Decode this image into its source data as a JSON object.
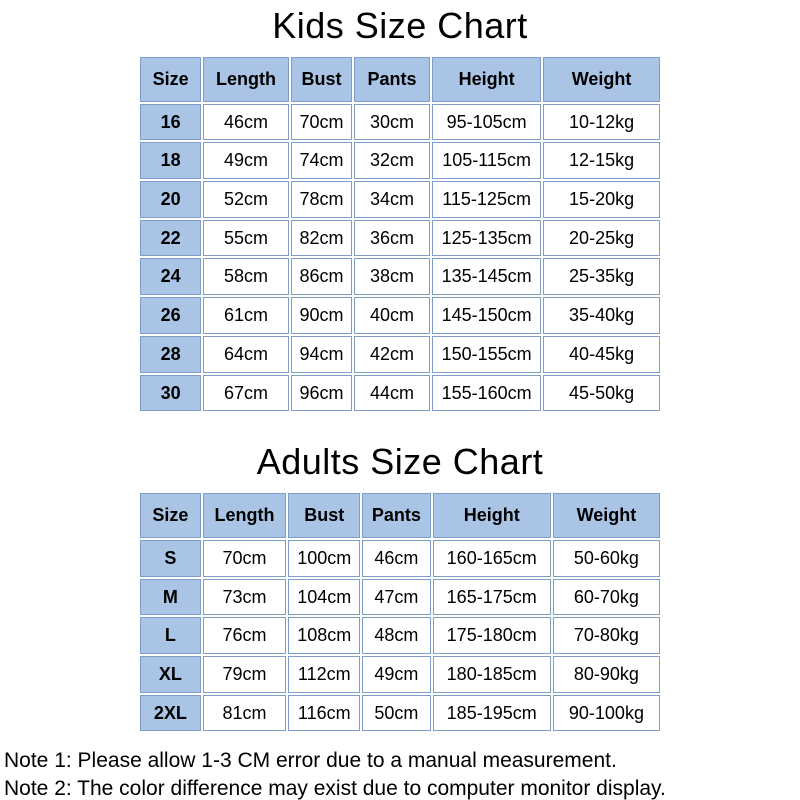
{
  "colors": {
    "table_fill": "#a9c4e5",
    "table_border": "#7e9ec7",
    "text": "#000000",
    "background": "#ffffff"
  },
  "chart_data": [
    {
      "type": "table",
      "title": "Kids Size Chart",
      "columns": [
        "Size",
        "Length",
        "Bust",
        "Pants",
        "Height",
        "Weight"
      ],
      "rows": [
        [
          "16",
          "46cm",
          "70cm",
          "30cm",
          "95-105cm",
          "10-12kg"
        ],
        [
          "18",
          "49cm",
          "74cm",
          "32cm",
          "105-115cm",
          "12-15kg"
        ],
        [
          "20",
          "52cm",
          "78cm",
          "34cm",
          "115-125cm",
          "15-20kg"
        ],
        [
          "22",
          "55cm",
          "82cm",
          "36cm",
          "125-135cm",
          "20-25kg"
        ],
        [
          "24",
          "58cm",
          "86cm",
          "38cm",
          "135-145cm",
          "25-35kg"
        ],
        [
          "26",
          "61cm",
          "90cm",
          "40cm",
          "145-150cm",
          "35-40kg"
        ],
        [
          "28",
          "64cm",
          "94cm",
          "42cm",
          "150-155cm",
          "40-45kg"
        ],
        [
          "30",
          "67cm",
          "96cm",
          "44cm",
          "155-160cm",
          "45-50kg"
        ]
      ]
    },
    {
      "type": "table",
      "title": "Adults Size Chart",
      "columns": [
        "Size",
        "Length",
        "Bust",
        "Pants",
        "Height",
        "Weight"
      ],
      "rows": [
        [
          "S",
          "70cm",
          "100cm",
          "46cm",
          "160-165cm",
          "50-60kg"
        ],
        [
          "M",
          "73cm",
          "104cm",
          "47cm",
          "165-175cm",
          "60-70kg"
        ],
        [
          "L",
          "76cm",
          "108cm",
          "48cm",
          "175-180cm",
          "70-80kg"
        ],
        [
          "XL",
          "79cm",
          "112cm",
          "49cm",
          "180-185cm",
          "80-90kg"
        ],
        [
          "2XL",
          "81cm",
          "116cm",
          "50cm",
          "185-195cm",
          "90-100kg"
        ]
      ]
    }
  ],
  "notes": [
    "Note 1: Please allow 1-3 CM error due to a manual measurement.",
    "Note 2: The color difference may exist due to computer monitor display."
  ]
}
